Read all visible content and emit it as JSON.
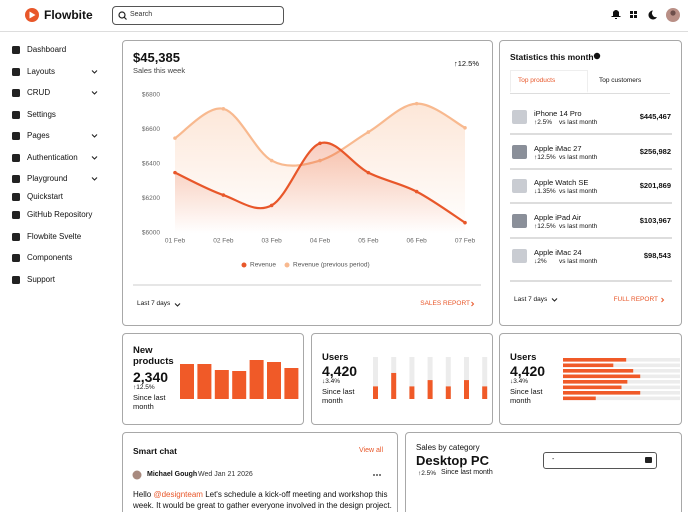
{
  "header": {
    "brand": "Flowbite",
    "search_placeholder": "Search"
  },
  "sidebar": {
    "items": [
      {
        "label": "Dashboard",
        "expandable": false
      },
      {
        "label": "Layouts",
        "expandable": true
      },
      {
        "label": "CRUD",
        "expandable": true
      },
      {
        "label": "Settings",
        "expandable": false
      },
      {
        "label": "Pages",
        "expandable": true
      },
      {
        "label": "Authentication",
        "expandable": true
      },
      {
        "label": "Playground",
        "expandable": true
      },
      {
        "label": "Quickstart",
        "expandable": false
      },
      {
        "label": "GitHub Repository",
        "expandable": false
      },
      {
        "label": "Flowbite Svelte",
        "expandable": false
      },
      {
        "label": "Components",
        "expandable": false
      },
      {
        "label": "Support",
        "expandable": false
      }
    ]
  },
  "sales_card": {
    "value": "$45,385",
    "label": "Sales this week",
    "change": "↑12.5%",
    "period": "Last 7 days",
    "link": "SALES REPORT"
  },
  "stats_card": {
    "title": "Statistics this month",
    "tabs": [
      "Top products",
      "Top customers"
    ],
    "items": [
      {
        "name": "iPhone 14 Pro",
        "change": "↑2.5%",
        "note": "vs last month",
        "price": "$445,467"
      },
      {
        "name": "Apple iMac 27",
        "change": "↑12.5%",
        "note": "vs last month",
        "price": "$256,982"
      },
      {
        "name": "Apple Watch SE",
        "change": "↓1.35%",
        "note": "vs last month",
        "price": "$201,869"
      },
      {
        "name": "Apple iPad Air",
        "change": "↑12.5%",
        "note": "vs last month",
        "price": "$103,967"
      },
      {
        "name": "Apple iMac 24",
        "change": "↓2%",
        "note": "vs last month",
        "price": "$98,543"
      }
    ],
    "period": "Last 7 days",
    "link": "FULL REPORT"
  },
  "small_cards": [
    {
      "title": "New products",
      "value": "2,340",
      "change": "↑12.5%",
      "note": "Since last month"
    },
    {
      "title": "Users",
      "value": "4,420",
      "change": "↓3.4%",
      "note": "Since last month"
    },
    {
      "title": "Users",
      "value": "4,420",
      "change": "↓3.4%",
      "note": "Since last month"
    }
  ],
  "chat": {
    "title": "Smart chat",
    "link": "View all",
    "author": "Michael Gough",
    "date": "Wed Jan 21 2026",
    "greeting": "Hello",
    "mention": "@designteam",
    "message": "Let's schedule a kick-off meeting and workshop this week. It would be great to gather everyone involved in the design project."
  },
  "category_card": {
    "label": "Sales by category",
    "title": "Desktop PC",
    "change": "↑2.5%",
    "note": "Since last month",
    "select": "-"
  },
  "chart_data": [
    {
      "type": "line",
      "categories": [
        "01 Feb",
        "02 Feb",
        "03 Feb",
        "04 Feb",
        "05 Feb",
        "06 Feb",
        "07 Feb"
      ],
      "series": [
        {
          "name": "Revenue",
          "color": "#e8572a",
          "values": [
            6350,
            6220,
            6160,
            6520,
            6350,
            6240,
            6060
          ]
        },
        {
          "name": "Revenue (previous period)",
          "color": "#f8b98f",
          "values": [
            6550,
            6720,
            6420,
            6420,
            6585,
            6750,
            6610
          ]
        }
      ],
      "ylim": [
        6000,
        6800
      ],
      "yticks": [
        {
          "value": 6000,
          "label": "$6000"
        },
        {
          "value": 6200,
          "label": "$6200"
        },
        {
          "value": 6400,
          "label": "$6400"
        },
        {
          "value": 6600,
          "label": "$6600"
        },
        {
          "value": 6800,
          "label": "$6800"
        }
      ],
      "grid": false
    },
    {
      "type": "bar",
      "color": "#f05a28",
      "values": [
        35,
        35,
        29,
        28,
        39,
        37,
        31
      ],
      "ylim": [
        0,
        40
      ]
    },
    {
      "type": "progress",
      "orientation": "vertical",
      "color": "#f05a28",
      "track_color": "#ececec",
      "values": [
        30,
        62,
        30,
        45,
        30,
        45,
        30
      ],
      "ylim": [
        0,
        100
      ]
    },
    {
      "type": "progress",
      "orientation": "horizontal",
      "color": "#f05a28",
      "track_color": "#ececec",
      "values": [
        54,
        43,
        60,
        66,
        55,
        50,
        66,
        28
      ],
      "xlim": [
        0,
        100
      ]
    }
  ]
}
